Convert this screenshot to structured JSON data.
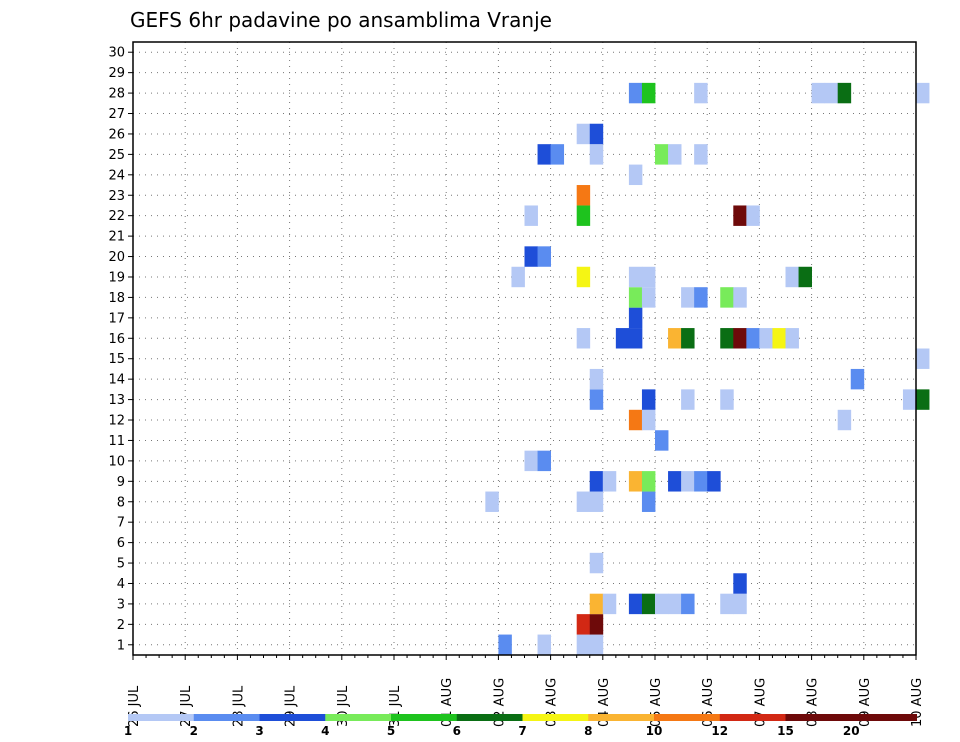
{
  "chart_data": {
    "type": "heatmap",
    "title": "GEFS 6hr padavine po ansamblima Vranje",
    "y_ticks": [
      "1",
      "2",
      "3",
      "4",
      "5",
      "6",
      "7",
      "8",
      "9",
      "10",
      "11",
      "12",
      "13",
      "14",
      "15",
      "16",
      "17",
      "18",
      "19",
      "20",
      "21",
      "22",
      "23",
      "24",
      "25",
      "26",
      "27",
      "28",
      "29",
      "30"
    ],
    "x_ticks": [
      "26 JUL",
      "27 JUL",
      "28 JUL",
      "29 JUL",
      "30 JUL",
      "31 JUL",
      "01 AUG",
      "02 AUG",
      "03 AUG",
      "04 AUG",
      "05 AUG",
      "06 AUG",
      "07 AUG",
      "08 AUG",
      "09 AUG",
      "10 AUG"
    ],
    "x_range": [
      "26 JUL",
      "10 AUG"
    ],
    "y_range": [
      1,
      30
    ],
    "grid": true,
    "colorbar": {
      "labels": [
        "1",
        "2",
        "3",
        "4",
        "5",
        "6",
        "7",
        "8",
        "10",
        "12",
        "15",
        "20"
      ],
      "colors": [
        "#b4c8f5",
        "#5a8cf0",
        "#1e4ed8",
        "#78eb5a",
        "#1ec31e",
        "#0a6e14",
        "#f5f514",
        "#fab432",
        "#f57814",
        "#d22814",
        "#6e0a0a"
      ]
    },
    "cells": [
      {
        "x": "02 AUG 00",
        "y": 1,
        "c": 1
      },
      {
        "x": "02 AUG 18",
        "y": 1,
        "c": 0
      },
      {
        "x": "03 AUG 12",
        "y": 1,
        "c": 0
      },
      {
        "x": "03 AUG 18",
        "y": 1,
        "c": 0
      },
      {
        "x": "03 AUG 12",
        "y": 2,
        "c": 9
      },
      {
        "x": "03 AUG 18",
        "y": 2,
        "c": 10
      },
      {
        "x": "03 AUG 18",
        "y": 3,
        "c": 7
      },
      {
        "x": "04 AUG 00",
        "y": 3,
        "c": 0
      },
      {
        "x": "04 AUG 12",
        "y": 3,
        "c": 2
      },
      {
        "x": "04 AUG 18",
        "y": 3,
        "c": 5
      },
      {
        "x": "05 AUG 00",
        "y": 3,
        "c": 0
      },
      {
        "x": "05 AUG 06",
        "y": 3,
        "c": 0
      },
      {
        "x": "05 AUG 12",
        "y": 3,
        "c": 1
      },
      {
        "x": "06 AUG 06",
        "y": 3,
        "c": 0
      },
      {
        "x": "06 AUG 12",
        "y": 3,
        "c": 0
      },
      {
        "x": "06 AUG 12",
        "y": 4,
        "c": 2
      },
      {
        "x": "03 AUG 18",
        "y": 5,
        "c": 0
      },
      {
        "x": "01 AUG 18",
        "y": 8,
        "c": 0
      },
      {
        "x": "03 AUG 12",
        "y": 8,
        "c": 0
      },
      {
        "x": "03 AUG 18",
        "y": 8,
        "c": 0
      },
      {
        "x": "04 AUG 18",
        "y": 8,
        "c": 1
      },
      {
        "x": "03 AUG 18",
        "y": 9,
        "c": 2
      },
      {
        "x": "04 AUG 00",
        "y": 9,
        "c": 0
      },
      {
        "x": "04 AUG 12",
        "y": 9,
        "c": 7
      },
      {
        "x": "04 AUG 18",
        "y": 9,
        "c": 3
      },
      {
        "x": "05 AUG 06",
        "y": 9,
        "c": 2
      },
      {
        "x": "05 AUG 12",
        "y": 9,
        "c": 0
      },
      {
        "x": "05 AUG 18",
        "y": 9,
        "c": 1
      },
      {
        "x": "06 AUG 00",
        "y": 9,
        "c": 2
      },
      {
        "x": "02 AUG 12",
        "y": 10,
        "c": 0
      },
      {
        "x": "02 AUG 18",
        "y": 10,
        "c": 1
      },
      {
        "x": "05 AUG 00",
        "y": 11,
        "c": 1
      },
      {
        "x": "04 AUG 12",
        "y": 12,
        "c": 8
      },
      {
        "x": "04 AUG 18",
        "y": 12,
        "c": 0
      },
      {
        "x": "08 AUG 12",
        "y": 12,
        "c": 0
      },
      {
        "x": "03 AUG 18",
        "y": 13,
        "c": 1
      },
      {
        "x": "04 AUG 18",
        "y": 13,
        "c": 2
      },
      {
        "x": "05 AUG 12",
        "y": 13,
        "c": 0
      },
      {
        "x": "06 AUG 06",
        "y": 13,
        "c": 0
      },
      {
        "x": "09 AUG 18",
        "y": 13,
        "c": 0
      },
      {
        "x": "10 AUG 00",
        "y": 13,
        "c": 5
      },
      {
        "x": "03 AUG 18",
        "y": 14,
        "c": 0
      },
      {
        "x": "08 AUG 18",
        "y": 14,
        "c": 1
      },
      {
        "x": "10 AUG 00",
        "y": 15,
        "c": 0
      },
      {
        "x": "03 AUG 12",
        "y": 16,
        "c": 0
      },
      {
        "x": "04 AUG 06",
        "y": 16,
        "c": 2
      },
      {
        "x": "04 AUG 12",
        "y": 16,
        "c": 2
      },
      {
        "x": "05 AUG 06",
        "y": 16,
        "c": 7
      },
      {
        "x": "05 AUG 12",
        "y": 16,
        "c": 5
      },
      {
        "x": "06 AUG 06",
        "y": 16,
        "c": 5
      },
      {
        "x": "06 AUG 12",
        "y": 16,
        "c": 10
      },
      {
        "x": "06 AUG 18",
        "y": 16,
        "c": 1
      },
      {
        "x": "07 AUG 00",
        "y": 16,
        "c": 0
      },
      {
        "x": "07 AUG 06",
        "y": 16,
        "c": 6
      },
      {
        "x": "07 AUG 12",
        "y": 16,
        "c": 0
      },
      {
        "x": "04 AUG 12",
        "y": 17,
        "c": 2
      },
      {
        "x": "04 AUG 12",
        "y": 18,
        "c": 3
      },
      {
        "x": "04 AUG 18",
        "y": 18,
        "c": 0
      },
      {
        "x": "05 AUG 12",
        "y": 18,
        "c": 0
      },
      {
        "x": "05 AUG 18",
        "y": 18,
        "c": 1
      },
      {
        "x": "06 AUG 06",
        "y": 18,
        "c": 3
      },
      {
        "x": "06 AUG 12",
        "y": 18,
        "c": 0
      },
      {
        "x": "02 AUG 06",
        "y": 19,
        "c": 0
      },
      {
        "x": "03 AUG 12",
        "y": 19,
        "c": 6
      },
      {
        "x": "04 AUG 12",
        "y": 19,
        "c": 0
      },
      {
        "x": "04 AUG 18",
        "y": 19,
        "c": 0
      },
      {
        "x": "07 AUG 12",
        "y": 19,
        "c": 0
      },
      {
        "x": "07 AUG 18",
        "y": 19,
        "c": 5
      },
      {
        "x": "02 AUG 12",
        "y": 20,
        "c": 2
      },
      {
        "x": "02 AUG 18",
        "y": 20,
        "c": 1
      },
      {
        "x": "02 AUG 12",
        "y": 22,
        "c": 0
      },
      {
        "x": "03 AUG 12",
        "y": 22,
        "c": 4
      },
      {
        "x": "06 AUG 12",
        "y": 22,
        "c": 10
      },
      {
        "x": "06 AUG 18",
        "y": 22,
        "c": 0
      },
      {
        "x": "03 AUG 12",
        "y": 23,
        "c": 8
      },
      {
        "x": "04 AUG 12",
        "y": 24,
        "c": 0
      },
      {
        "x": "02 AUG 18",
        "y": 25,
        "c": 2
      },
      {
        "x": "03 AUG 00",
        "y": 25,
        "c": 1
      },
      {
        "x": "03 AUG 18",
        "y": 25,
        "c": 0
      },
      {
        "x": "05 AUG 00",
        "y": 25,
        "c": 3
      },
      {
        "x": "05 AUG 06",
        "y": 25,
        "c": 0
      },
      {
        "x": "05 AUG 18",
        "y": 25,
        "c": 0
      },
      {
        "x": "03 AUG 12",
        "y": 26,
        "c": 0
      },
      {
        "x": "03 AUG 18",
        "y": 26,
        "c": 2
      },
      {
        "x": "04 AUG 12",
        "y": 28,
        "c": 1
      },
      {
        "x": "04 AUG 18",
        "y": 28,
        "c": 4
      },
      {
        "x": "05 AUG 18",
        "y": 28,
        "c": 0
      },
      {
        "x": "08 AUG 00",
        "y": 28,
        "c": 0
      },
      {
        "x": "08 AUG 06",
        "y": 28,
        "c": 0
      },
      {
        "x": "08 AUG 12",
        "y": 28,
        "c": 5
      },
      {
        "x": "10 AUG 00",
        "y": 28,
        "c": 0
      }
    ]
  }
}
